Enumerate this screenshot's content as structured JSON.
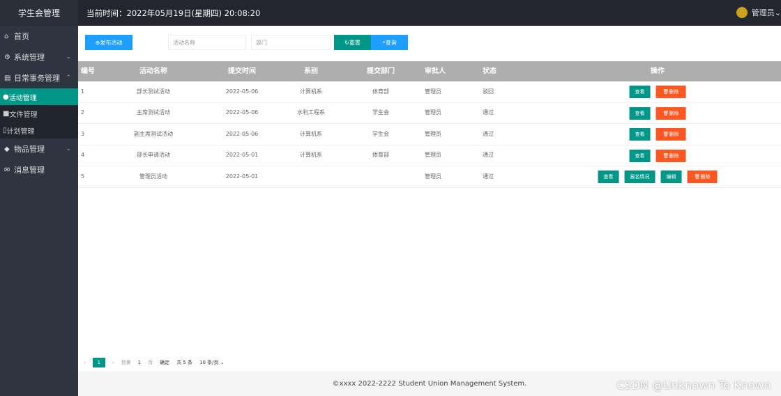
{
  "app_title": "学生会管理",
  "header": {
    "time_label": "当前时间：",
    "time_value": "2022年05月19日(星期四) 20:08:20",
    "user": "管理员"
  },
  "sidebar": {
    "items": [
      {
        "label": "首页",
        "icon": "home-icon"
      },
      {
        "label": "系统管理",
        "icon": "gear-icon"
      },
      {
        "label": "日常事务管理",
        "icon": "file-icon",
        "expanded": true,
        "children": [
          {
            "label": "活动管理",
            "active": true
          },
          {
            "label": "文件管理"
          },
          {
            "label": "计划管理"
          }
        ]
      },
      {
        "label": "物品管理",
        "icon": "shield-icon"
      },
      {
        "label": "消息管理",
        "icon": "mail-icon"
      }
    ]
  },
  "toolbar": {
    "publish": "发布活动",
    "name_placeholder": "活动名称",
    "dept_placeholder": "部门",
    "reset": "重置",
    "search": "查询"
  },
  "table": {
    "headers": [
      "编号",
      "活动名称",
      "提交时间",
      "系别",
      "提交部门",
      "审批人",
      "状态",
      "操作"
    ],
    "rows": [
      [
        "1",
        "部长测试活动",
        "2022-05-06",
        "计算机系",
        "体育部",
        "管理员",
        "驳回"
      ],
      [
        "2",
        "主席测试活动",
        "2022-05-06",
        "水利工程系",
        "学生会",
        "管理员",
        "通过"
      ],
      [
        "3",
        "副主席测试活动",
        "2022-05-06",
        "计算机系",
        "学生会",
        "管理员",
        "通过"
      ],
      [
        "4",
        "部长申请活动",
        "2022-05-01",
        "计算机系",
        "体育部",
        "管理员",
        "通过"
      ],
      [
        "5",
        "管理员活动",
        "2022-05-01",
        "",
        "",
        "管理员",
        "通过"
      ]
    ],
    "actions": {
      "view": "查看",
      "delete": "删除",
      "signup": "报名情况",
      "edit": "编辑"
    }
  },
  "pager": {
    "current": "1",
    "goto": "到第",
    "page_input": "1",
    "page": "页",
    "confirm": "确定",
    "total": "共 5 条",
    "per_page": "10 条/页"
  },
  "footer": "©xxxx 2022-2222 Student Union Management System.",
  "watermark": "CSDN @Unknown To Known",
  "colors": {
    "primary": "#009688",
    "blue": "#1e9fff",
    "danger": "#ff5722",
    "sidebar": "#2f3441"
  }
}
